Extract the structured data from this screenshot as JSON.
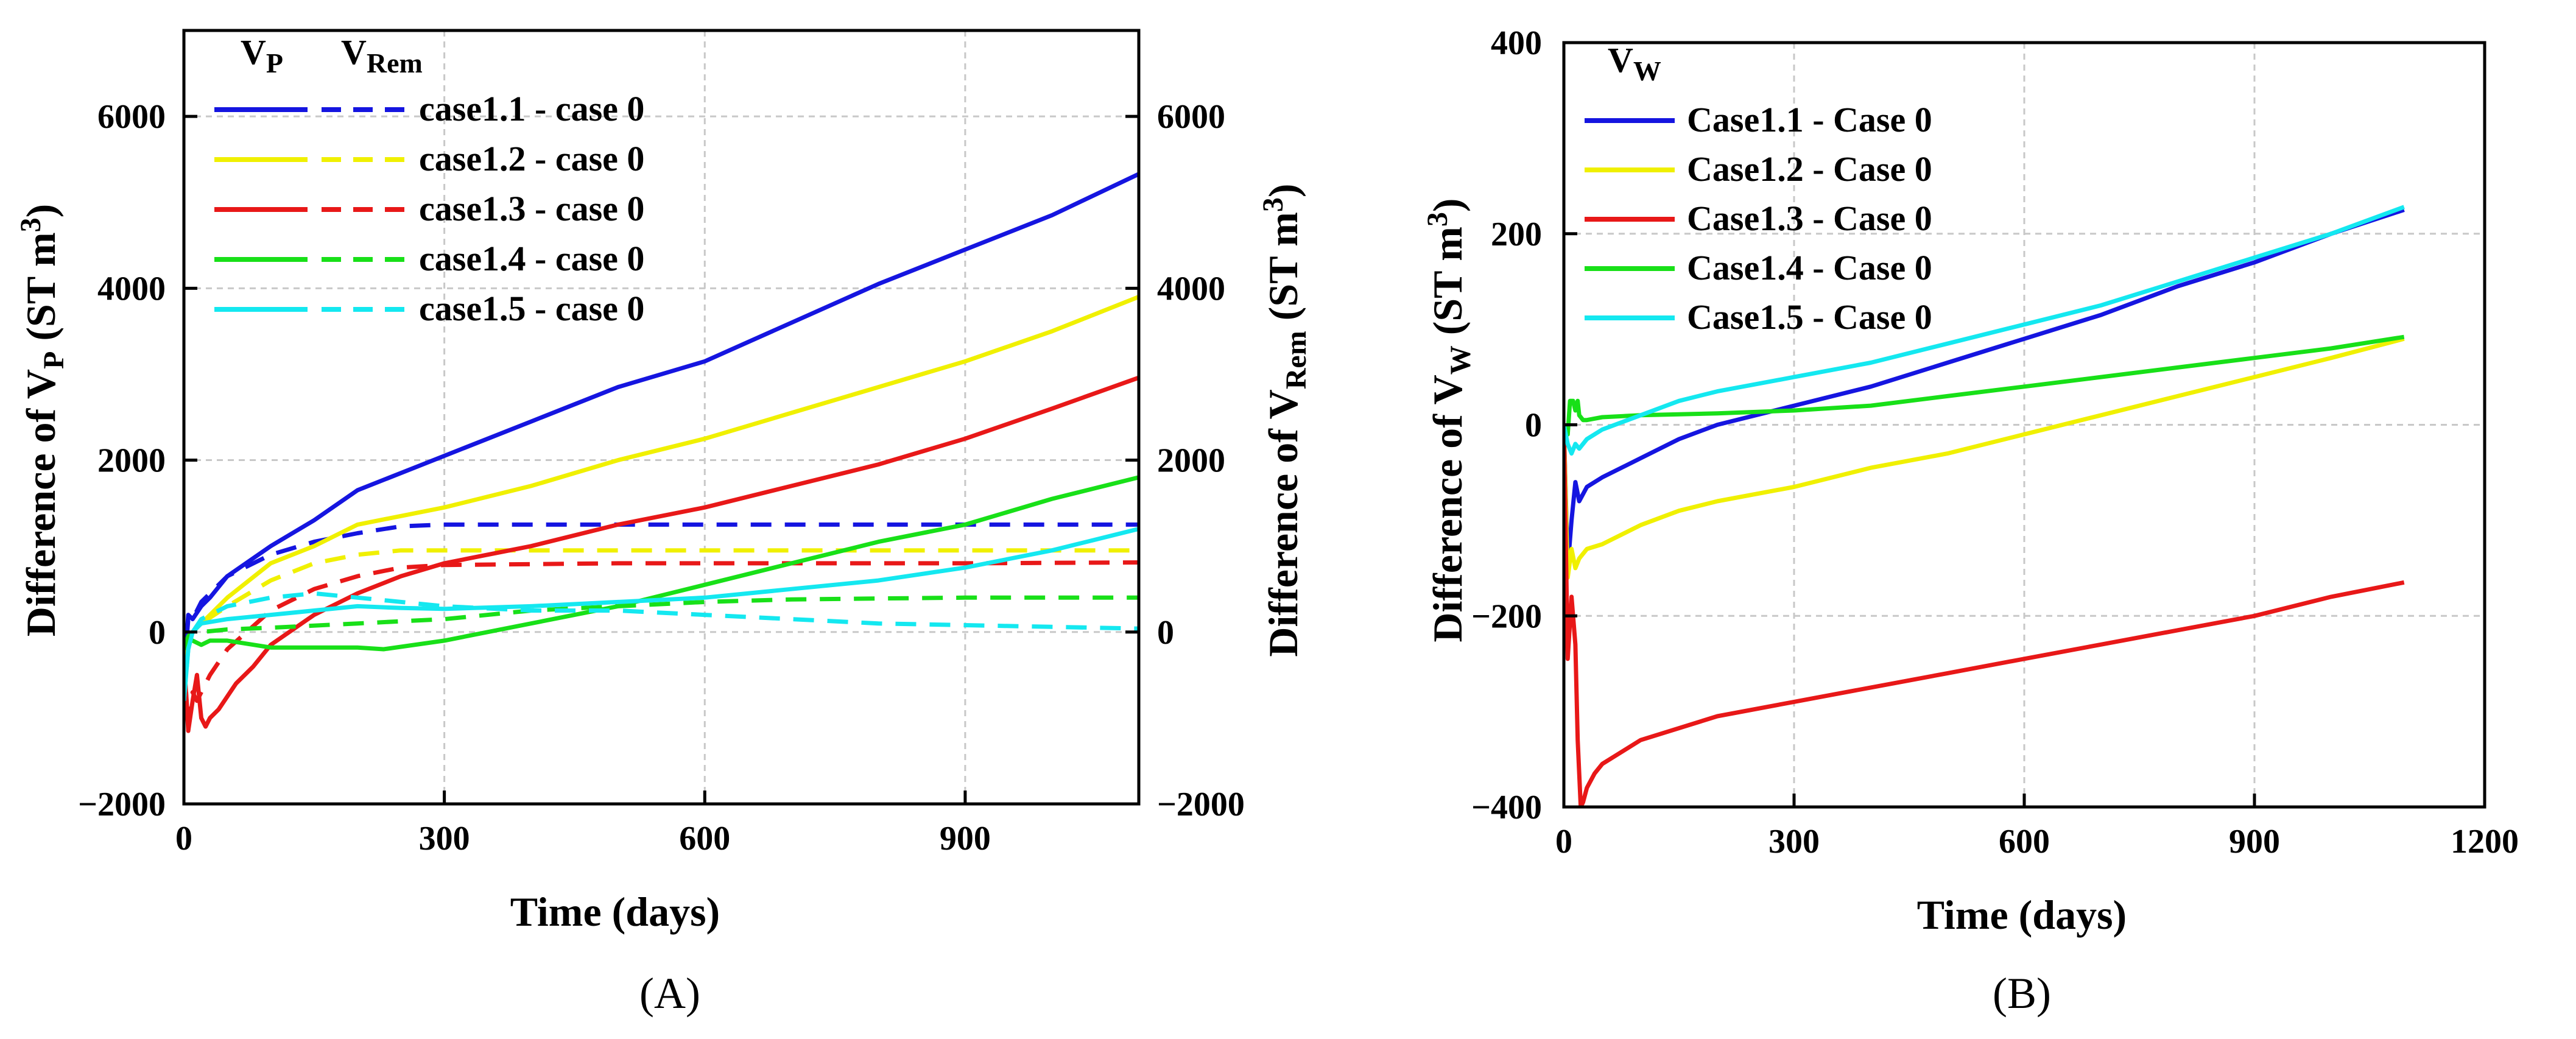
{
  "figure": {
    "panel_a_label": "(A)",
    "panel_b_label": "(B)"
  },
  "chart_data": [
    {
      "id": "A",
      "type": "line",
      "xlabel": "Time (days)",
      "ylabel": "Difference of V_P (ST m^3)",
      "ylabel_parts": [
        "Difference of V",
        "P",
        " (ST m",
        "3",
        ")"
      ],
      "y2label": "Difference of V_Rem (ST m^3)",
      "y2label_parts": [
        "Difference of V",
        "Rem",
        " (ST m",
        "3",
        ")"
      ],
      "xlim": [
        0,
        1100
      ],
      "ylim": [
        -2000,
        7000
      ],
      "y2lim": [
        -2000,
        7000
      ],
      "xticks": [
        0,
        300,
        600,
        900
      ],
      "yticks": [
        -2000,
        0,
        2000,
        4000,
        6000
      ],
      "y2ticks": [
        -2000,
        0,
        2000,
        4000,
        6000
      ],
      "grid": true,
      "legend_position": "top-left",
      "legend_header": [
        "V_P",
        "V_Rem"
      ],
      "legend_header_parts": [
        [
          "V",
          "P"
        ],
        [
          "V",
          "Rem"
        ]
      ],
      "series": [
        {
          "name": "case1.1 - case 0",
          "color": "#1515e0",
          "vp": {
            "x": [
              0,
              5,
              10,
              20,
              30,
              50,
              100,
              150,
              200,
              300,
              400,
              500,
              600,
              700,
              800,
              900,
              1000,
              1100
            ],
            "y": [
              -500,
              200,
              150,
              300,
              400,
              650,
              1000,
              1300,
              1650,
              2050,
              2450,
              2850,
              3150,
              3600,
              4050,
              4450,
              4850,
              5330
            ]
          },
          "vrem": {
            "x": [
              0,
              5,
              10,
              20,
              50,
              100,
              150,
              200,
              250,
              300,
              500,
              700,
              900,
              1100
            ],
            "y": [
              -500,
              150,
              150,
              350,
              650,
              900,
              1050,
              1150,
              1230,
              1250,
              1250,
              1250,
              1250,
              1250
            ]
          }
        },
        {
          "name": "case1.2 - case 0",
          "color": "#f0f000",
          "vp": {
            "x": [
              0,
              5,
              10,
              20,
              30,
              50,
              100,
              150,
              200,
              300,
              400,
              500,
              600,
              700,
              800,
              900,
              1000,
              1100
            ],
            "y": [
              -600,
              -100,
              0,
              100,
              200,
              400,
              800,
              1000,
              1250,
              1450,
              1700,
              2000,
              2250,
              2550,
              2850,
              3150,
              3500,
              3900
            ]
          },
          "vrem": {
            "x": [
              0,
              5,
              10,
              20,
              50,
              100,
              150,
              200,
              250,
              300,
              500,
              700,
              900,
              1100
            ],
            "y": [
              -600,
              -100,
              0,
              100,
              300,
              600,
              800,
              900,
              950,
              950,
              950,
              950,
              950,
              950
            ]
          }
        },
        {
          "name": "case1.3 - case 0",
          "color": "#e81818",
          "vp": {
            "x": [
              0,
              5,
              10,
              15,
              20,
              25,
              30,
              40,
              60,
              80,
              100,
              150,
              200,
              250,
              300,
              400,
              500,
              600,
              700,
              800,
              900,
              1000,
              1100
            ],
            "y": [
              -300,
              -1150,
              -800,
              -500,
              -1000,
              -1100,
              -1000,
              -900,
              -600,
              -400,
              -150,
              200,
              450,
              650,
              800,
              1000,
              1250,
              1450,
              1700,
              1950,
              2250,
              2600,
              2960
            ]
          },
          "vrem": {
            "x": [
              0,
              5,
              10,
              15,
              20,
              30,
              50,
              100,
              150,
              200,
              250,
              300,
              400,
              500,
              700,
              900,
              1100
            ],
            "y": [
              -300,
              -1100,
              -700,
              -800,
              -700,
              -500,
              -200,
              250,
              500,
              650,
              750,
              780,
              790,
              800,
              800,
              800,
              810
            ]
          }
        },
        {
          "name": "case1.4 - case 0",
          "color": "#18e018",
          "vp": {
            "x": [
              0,
              5,
              10,
              20,
              30,
              50,
              100,
              150,
              200,
              230,
              300,
              400,
              500,
              600,
              700,
              800,
              900,
              1000,
              1100
            ],
            "y": [
              -200,
              -100,
              -100,
              -150,
              -100,
              -100,
              -180,
              -180,
              -180,
              -200,
              -100,
              100,
              300,
              550,
              800,
              1050,
              1250,
              1550,
              1800
            ]
          },
          "vrem": {
            "x": [
              0,
              5,
              10,
              20,
              50,
              100,
              200,
              300,
              400,
              500,
              600,
              700,
              800,
              900,
              1000,
              1100
            ],
            "y": [
              -200,
              -50,
              0,
              0,
              30,
              50,
              100,
              150,
              250,
              300,
              350,
              380,
              390,
              400,
              400,
              400
            ]
          }
        },
        {
          "name": "case1.5 - case 0",
          "color": "#14e8f0",
          "vp": {
            "x": [
              0,
              5,
              10,
              20,
              50,
              100,
              150,
              200,
              250,
              300,
              400,
              500,
              600,
              700,
              800,
              900,
              1000,
              1100
            ],
            "y": [
              -800,
              -200,
              0,
              100,
              150,
              200,
              250,
              300,
              280,
              270,
              300,
              350,
              400,
              500,
              600,
              750,
              950,
              1200
            ]
          },
          "vrem": {
            "x": [
              0,
              5,
              10,
              20,
              50,
              100,
              150,
              200,
              300,
              400,
              500,
              600,
              700,
              800,
              900,
              1000,
              1100
            ],
            "y": [
              -800,
              -200,
              0,
              150,
              300,
              400,
              450,
              400,
              300,
              250,
              250,
              200,
              150,
              100,
              80,
              60,
              40
            ]
          }
        }
      ]
    },
    {
      "id": "B",
      "type": "line",
      "xlabel": "Time (days)",
      "ylabel": "Difference of V_W (ST m^3)",
      "ylabel_parts": [
        "Difference of V",
        "W",
        " (ST m",
        "3",
        ")"
      ],
      "xlim": [
        0,
        1200
      ],
      "ylim": [
        -400,
        400
      ],
      "xticks": [
        0,
        300,
        600,
        900,
        1200
      ],
      "yticks": [
        -400,
        -200,
        0,
        200,
        400
      ],
      "grid": true,
      "legend_position": "top-left",
      "legend_header": "V_W",
      "legend_header_parts": [
        "V",
        "W"
      ],
      "series": [
        {
          "name": "Case1.1 - Case 0",
          "color": "#1515e0",
          "x": [
            0,
            5,
            10,
            15,
            20,
            30,
            50,
            100,
            150,
            200,
            300,
            400,
            500,
            600,
            700,
            800,
            900,
            1000,
            1095
          ],
          "y": [
            0,
            -150,
            -100,
            -60,
            -80,
            -65,
            -55,
            -35,
            -15,
            0,
            20,
            40,
            65,
            90,
            115,
            145,
            170,
            200,
            225
          ]
        },
        {
          "name": "Case1.2 - Case 0",
          "color": "#f0f000",
          "x": [
            0,
            5,
            10,
            15,
            20,
            30,
            50,
            100,
            150,
            200,
            300,
            400,
            500,
            600,
            700,
            800,
            900,
            1000,
            1095
          ],
          "y": [
            0,
            -160,
            -130,
            -150,
            -140,
            -130,
            -125,
            -105,
            -90,
            -80,
            -65,
            -45,
            -30,
            -10,
            10,
            30,
            50,
            70,
            90
          ]
        },
        {
          "name": "Case1.3 - Case 0",
          "color": "#e81818",
          "x": [
            0,
            5,
            10,
            15,
            18,
            22,
            25,
            30,
            40,
            50,
            100,
            200,
            300,
            400,
            500,
            600,
            700,
            800,
            900,
            1000,
            1095
          ],
          "y": [
            0,
            -245,
            -180,
            -230,
            -330,
            -400,
            -395,
            -380,
            -365,
            -355,
            -330,
            -305,
            -290,
            -275,
            -260,
            -245,
            -230,
            -215,
            -200,
            -180,
            -165
          ]
        },
        {
          "name": "Case1.4 - Case 0",
          "color": "#18e018",
          "x": [
            0,
            5,
            8,
            12,
            15,
            18,
            20,
            25,
            30,
            50,
            100,
            200,
            300,
            400,
            500,
            600,
            700,
            800,
            900,
            1000,
            1095
          ],
          "y": [
            0,
            -10,
            25,
            25,
            15,
            25,
            10,
            5,
            5,
            8,
            10,
            12,
            15,
            20,
            30,
            40,
            50,
            60,
            70,
            80,
            92
          ]
        },
        {
          "name": "Case1.5 - Case 0",
          "color": "#14e8f0",
          "x": [
            0,
            5,
            10,
            15,
            20,
            30,
            50,
            100,
            150,
            200,
            300,
            400,
            500,
            600,
            700,
            800,
            900,
            1000,
            1095
          ],
          "y": [
            0,
            -20,
            -30,
            -20,
            -25,
            -15,
            -5,
            10,
            25,
            35,
            50,
            65,
            85,
            105,
            125,
            150,
            175,
            200,
            228
          ]
        }
      ]
    }
  ]
}
